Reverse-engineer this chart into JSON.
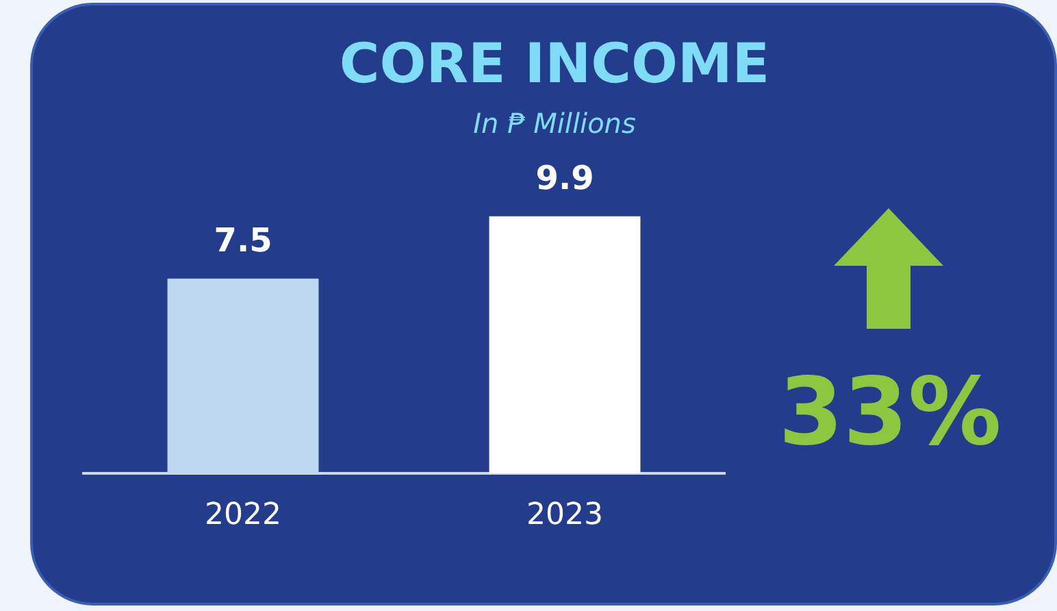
{
  "chart_data": {
    "type": "bar",
    "title": "CORE INCOME",
    "subtitle": "In ₱ Millions",
    "categories": [
      "2022",
      "2023"
    ],
    "values": [
      7.5,
      9.9
    ],
    "colors": [
      "#bdd7ee",
      "#ffffff"
    ],
    "data_labels": true,
    "grid": false,
    "legend": false,
    "annotations": [
      "33%"
    ]
  }
}
